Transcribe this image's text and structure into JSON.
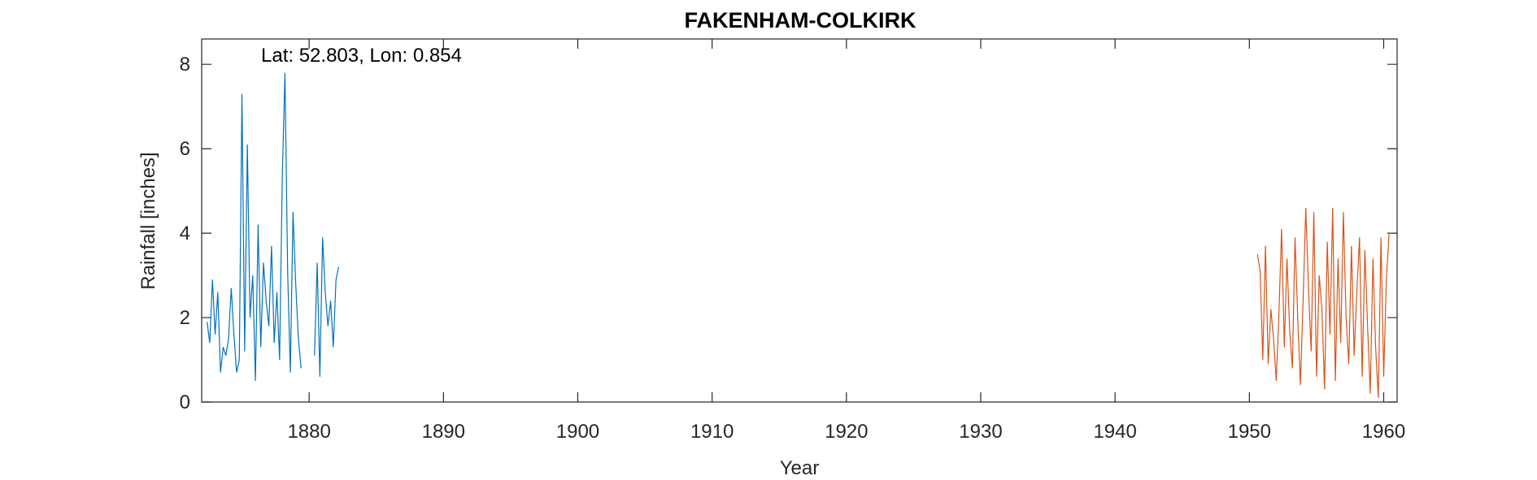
{
  "chart_data": {
    "type": "line",
    "title": "FAKENHAM-COLKIRK",
    "annotation": "Lat: 52.803, Lon: 0.854",
    "xlabel": "Year",
    "ylabel": "Rainfall [inches]",
    "xlim": [
      1872,
      1961
    ],
    "xticks": [
      1880,
      1890,
      1900,
      1910,
      1920,
      1930,
      1940,
      1950,
      1960
    ],
    "ylim": [
      0,
      8.6
    ],
    "yticks": [
      0,
      2,
      4,
      6,
      8
    ],
    "series": [
      {
        "color": "#0072bd",
        "x": [
          1872.4,
          1872.6,
          1872.8,
          1873.0,
          1873.2,
          1873.4,
          1873.6,
          1873.8,
          1874.0,
          1874.2,
          1874.4,
          1874.6,
          1874.8,
          1875.0,
          1875.2,
          1875.4,
          1875.6,
          1875.8,
          1876.0,
          1876.2,
          1876.4,
          1876.6,
          1876.8,
          1877.0,
          1877.2,
          1877.4,
          1877.6,
          1877.8,
          1878.0,
          1878.2,
          1878.4,
          1878.6,
          1878.8,
          1879.0,
          1879.2,
          1879.4,
          1879.9,
          1880.4,
          1880.6,
          1880.8,
          1881.0,
          1881.2,
          1881.4,
          1881.6,
          1881.8,
          1882.0,
          1882.2
        ],
        "values": [
          1.9,
          1.4,
          2.9,
          1.6,
          2.6,
          0.7,
          1.3,
          1.1,
          1.5,
          2.7,
          1.6,
          0.7,
          1.0,
          7.3,
          1.2,
          6.1,
          2.0,
          3.0,
          0.5,
          4.2,
          1.3,
          3.3,
          2.4,
          1.8,
          3.7,
          1.4,
          2.6,
          1.0,
          5.3,
          7.8,
          3.1,
          0.7,
          4.5,
          2.8,
          1.5,
          0.8,
          null,
          1.1,
          3.3,
          0.6,
          3.9,
          2.6,
          1.8,
          2.4,
          1.3,
          2.9,
          3.2
        ]
      },
      {
        "color": "#d95319",
        "x": [
          1950.6,
          1950.8,
          1951.0,
          1951.2,
          1951.4,
          1951.6,
          1951.8,
          1952.0,
          1952.2,
          1952.4,
          1952.6,
          1952.8,
          1953.0,
          1953.2,
          1953.4,
          1953.6,
          1953.8,
          1954.0,
          1954.2,
          1954.4,
          1954.6,
          1954.8,
          1955.0,
          1955.2,
          1955.4,
          1955.6,
          1955.8,
          1956.0,
          1956.2,
          1956.4,
          1956.6,
          1956.8,
          1957.0,
          1957.2,
          1957.4,
          1957.6,
          1957.8,
          1958.0,
          1958.2,
          1958.4,
          1958.6,
          1958.8,
          1959.0,
          1959.2,
          1959.4,
          1959.6,
          1959.8,
          1960.0,
          1960.2,
          1960.4
        ],
        "values": [
          3.5,
          3.1,
          1.0,
          3.7,
          0.9,
          2.2,
          1.5,
          0.5,
          2.1,
          4.1,
          1.3,
          3.4,
          1.7,
          0.8,
          3.9,
          2.0,
          0.4,
          2.4,
          4.6,
          2.7,
          1.2,
          4.5,
          0.6,
          3.0,
          2.2,
          0.3,
          3.8,
          1.6,
          4.6,
          0.5,
          3.4,
          1.4,
          4.5,
          2.0,
          0.9,
          3.7,
          1.1,
          2.6,
          3.9,
          0.6,
          3.6,
          1.8,
          0.2,
          3.4,
          1.3,
          0.1,
          3.9,
          0.6,
          2.9,
          4.0
        ]
      }
    ]
  }
}
